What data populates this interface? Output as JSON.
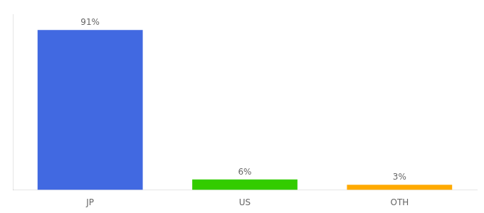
{
  "chart_data": {
    "type": "bar",
    "categories": [
      "JP",
      "US",
      "OTH"
    ],
    "values": [
      91,
      6,
      3
    ],
    "value_labels": [
      "91%",
      "6%",
      "3%"
    ],
    "colors": [
      "#4169e1",
      "#33cc00",
      "#ffaa00"
    ],
    "ylim": [
      0,
      100
    ],
    "data_labels": true,
    "tick_labels": "x",
    "grid": false
  }
}
